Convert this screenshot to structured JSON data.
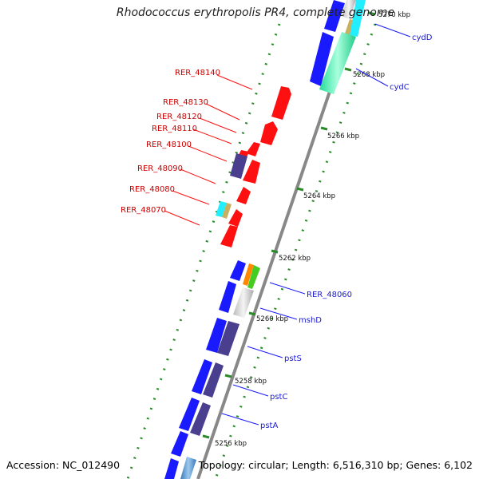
{
  "title": "Rhodococcus erythropolis PR4, complete genome",
  "footer": {
    "accession": "Accession: NC_012490",
    "info": "Topology: circular; Length: 6,516,310 bp; Genes: 6,102"
  },
  "colors": {
    "backbone": "#888888",
    "forward_gene": "#1a1aff",
    "reverse_gene": "#4a3f8f",
    "highlight_gene": "#ff1010",
    "label_blue": "#1a1acc",
    "label_red": "#cc0000",
    "tick": "#2a8a2a"
  },
  "kbp_labels": [
    "5270 kbp",
    "5268 kbp",
    "5266 kbp",
    "5264 kbp",
    "5262 kbp",
    "5260 kbp",
    "5258 kbp",
    "5256 kbp"
  ],
  "red_labels": [
    "RER_48140",
    "RER_48130",
    "RER_48120",
    "RER_48110",
    "RER_48100",
    "RER_48090",
    "RER_48080",
    "RER_48070"
  ],
  "blue_labels": [
    "cydD",
    "cydC",
    "RER_48060",
    "mshD",
    "pstS",
    "pstC",
    "pstA"
  ]
}
